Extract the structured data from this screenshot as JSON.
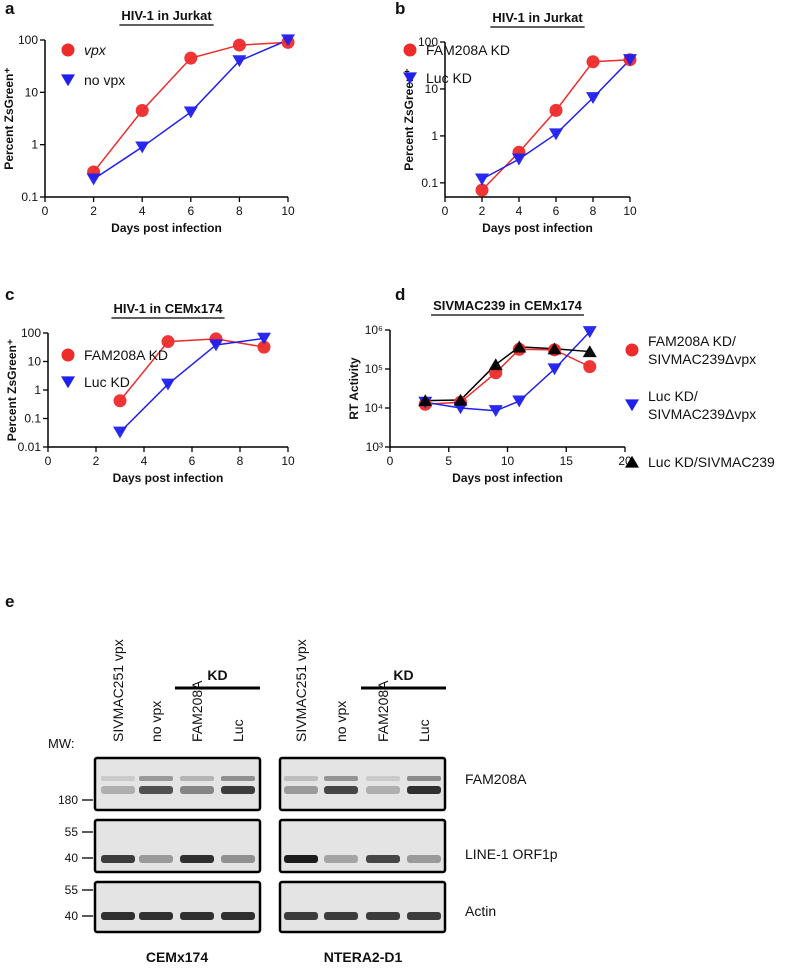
{
  "chart_data": [
    {
      "type": "line",
      "panel": "a",
      "title": "HIV-1 in Jurkat",
      "xlabel": "Days post infection",
      "ylabel": "Percent ZsGreen⁺",
      "x": [
        2,
        4,
        6,
        8,
        10
      ],
      "xlim": [
        0,
        10
      ],
      "xticks": [
        0,
        2,
        4,
        6,
        8,
        10
      ],
      "ylog": true,
      "ylim": [
        0.1,
        100
      ],
      "yticks": [
        0.1,
        1,
        10,
        100
      ],
      "series": [
        {
          "name": "vpx",
          "color": "#ee2b2b",
          "marker": "circle",
          "values": [
            0.3,
            4.5,
            45,
            80,
            90
          ]
        },
        {
          "name": "no vpx",
          "color": "#2020ee",
          "marker": "triangle-down",
          "values": [
            0.22,
            0.9,
            4.2,
            40,
            100
          ]
        }
      ]
    },
    {
      "type": "line",
      "panel": "b",
      "title": "HIV-1 in Jurkat",
      "xlabel": "Days post infection",
      "ylabel": "Percent ZsGreen⁺",
      "x": [
        2,
        4,
        6,
        8,
        10
      ],
      "xlim": [
        0,
        10
      ],
      "xticks": [
        0,
        2,
        4,
        6,
        8,
        10
      ],
      "ylog": true,
      "ylim": [
        0.05,
        100
      ],
      "yticks": [
        0.1,
        1,
        10,
        100
      ],
      "series": [
        {
          "name": "FAM208A KD",
          "color": "#ee2b2b",
          "marker": "circle",
          "values": [
            0.07,
            0.45,
            3.5,
            38,
            42
          ]
        },
        {
          "name": "Luc KD",
          "color": "#2020ee",
          "marker": "triangle-down",
          "values": [
            0.12,
            0.32,
            1.1,
            6.5,
            42
          ]
        }
      ]
    },
    {
      "type": "line",
      "panel": "c",
      "title": "HIV-1 in CEMx174",
      "xlabel": "Days post infection",
      "ylabel": "Percent ZsGreen⁺",
      "x": [
        3,
        5,
        7,
        9
      ],
      "xlim": [
        0,
        10
      ],
      "xticks": [
        0,
        2,
        4,
        6,
        8,
        10
      ],
      "ylog": true,
      "ylim": [
        0.01,
        100
      ],
      "yticks": [
        0.01,
        0.1,
        1,
        10,
        100
      ],
      "series": [
        {
          "name": "FAM208A KD",
          "color": "#ee2b2b",
          "marker": "circle",
          "values": [
            0.42,
            50,
            62,
            32
          ]
        },
        {
          "name": "Luc KD",
          "color": "#2020ee",
          "marker": "triangle-down",
          "values": [
            0.033,
            1.6,
            38,
            65
          ]
        }
      ]
    },
    {
      "type": "line",
      "panel": "d",
      "title": "SIVMAC239 in CEMx174",
      "xlabel": "Days post infection",
      "ylabel": "RT Activity",
      "x": [
        3,
        6,
        9,
        11,
        14,
        17
      ],
      "xlim": [
        0,
        20
      ],
      "xticks": [
        0,
        5,
        10,
        15,
        20
      ],
      "ylog": true,
      "ylim": [
        1000,
        1000000
      ],
      "yticks": [
        {
          "value": 1000,
          "label": "10³"
        },
        {
          "value": 10000,
          "label": "10⁴"
        },
        {
          "value": 100000,
          "label": "10⁵"
        },
        {
          "value": 1000000,
          "label": "10⁶"
        }
      ],
      "series": [
        {
          "name": "FAM208A KD/SIVMAC239Δvpx",
          "color": "#ee2b2b",
          "marker": "circle",
          "values": [
            12500,
            14000,
            80000,
            320000,
            310000,
            115000
          ]
        },
        {
          "name": "Luc KD/SIVMAC239Δvpx",
          "color": "#2020ee",
          "marker": "triangle-down",
          "values": [
            14000,
            10000,
            8500,
            15000,
            100000,
            900000
          ]
        },
        {
          "name": "Luc KD/SIVMAC239",
          "color": "#000000",
          "marker": "triangle-up",
          "values": [
            15500,
            16000,
            130000,
            370000,
            330000,
            280000
          ]
        }
      ]
    }
  ],
  "blot": {
    "panel": "e",
    "mw_label": "MW:",
    "kd": "KD",
    "lanes": [
      "SIVMAC251 vpx",
      "no vpx",
      "FAM208A",
      "Luc"
    ],
    "cell_lines": [
      "CEMx174",
      "NTERA2-D1"
    ],
    "rows": [
      {
        "label": "FAM208A",
        "mw": [
          180
        ]
      },
      {
        "label": "LINE-1 ORF1p",
        "mw": [
          55,
          40
        ]
      },
      {
        "label": "Actin",
        "mw": [
          55,
          40
        ]
      }
    ]
  }
}
